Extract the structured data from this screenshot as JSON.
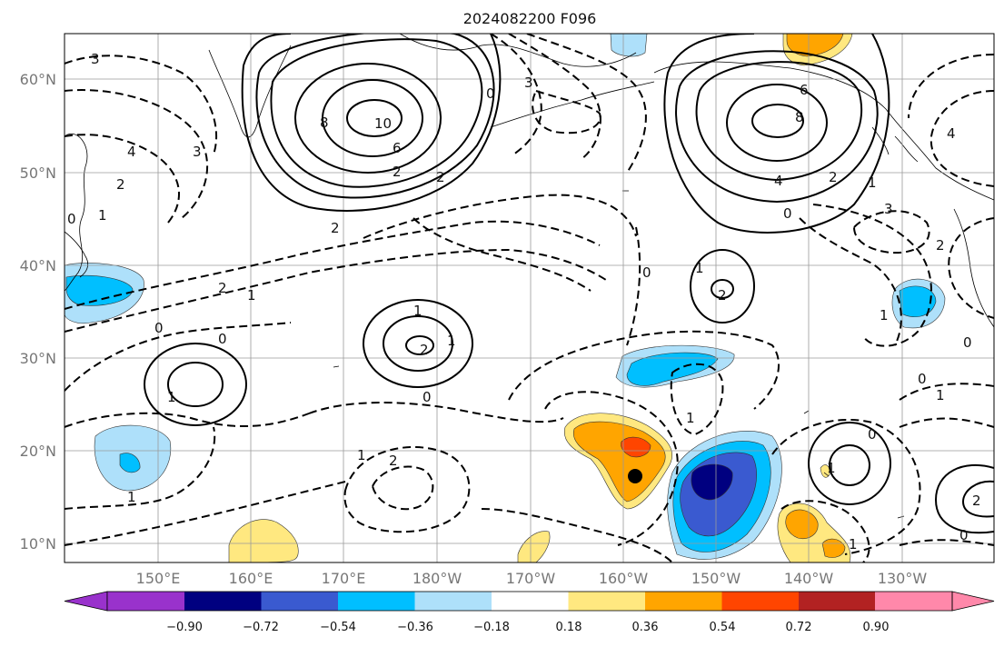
{
  "title": "2024082200 F096",
  "lat_labels": [
    "60°N",
    "50°N",
    "40°N",
    "30°N",
    "20°N",
    "10°N"
  ],
  "lon_labels": [
    "150°E",
    "160°E",
    "170°E",
    "180°W",
    "170°W",
    "160°W",
    "150°W",
    "140°W",
    "130°W"
  ],
  "colorbar": {
    "tick_labels": [
      "−0.90",
      "−0.72",
      "−0.54",
      "−0.36",
      "−0.18",
      "0.18",
      "0.36",
      "0.54",
      "0.72",
      "0.90"
    ],
    "colors": [
      "#9932cc",
      "#000080",
      "#3a5ad0",
      "#00bfff",
      "#aee0fa",
      "#ffffff",
      "#ffe880",
      "#ffa500",
      "#ff4500",
      "#b22222",
      "#ff88aa"
    ]
  },
  "contour_labels": [
    "3",
    "10",
    "8",
    "6",
    "2",
    "0",
    "4",
    "3",
    "2",
    "0",
    "1",
    "2",
    "2",
    "1",
    "0",
    "1",
    "2",
    "1",
    "0",
    "3",
    "6",
    "8",
    "4",
    "2",
    "0",
    "1",
    "2",
    "0",
    "3",
    "2",
    "1",
    "4",
    "1",
    "0",
    "1",
    "0",
    "2",
    "1",
    "1",
    "0",
    "1",
    "2",
    "1",
    "1",
    "2",
    "0",
    "0",
    "1"
  ]
}
